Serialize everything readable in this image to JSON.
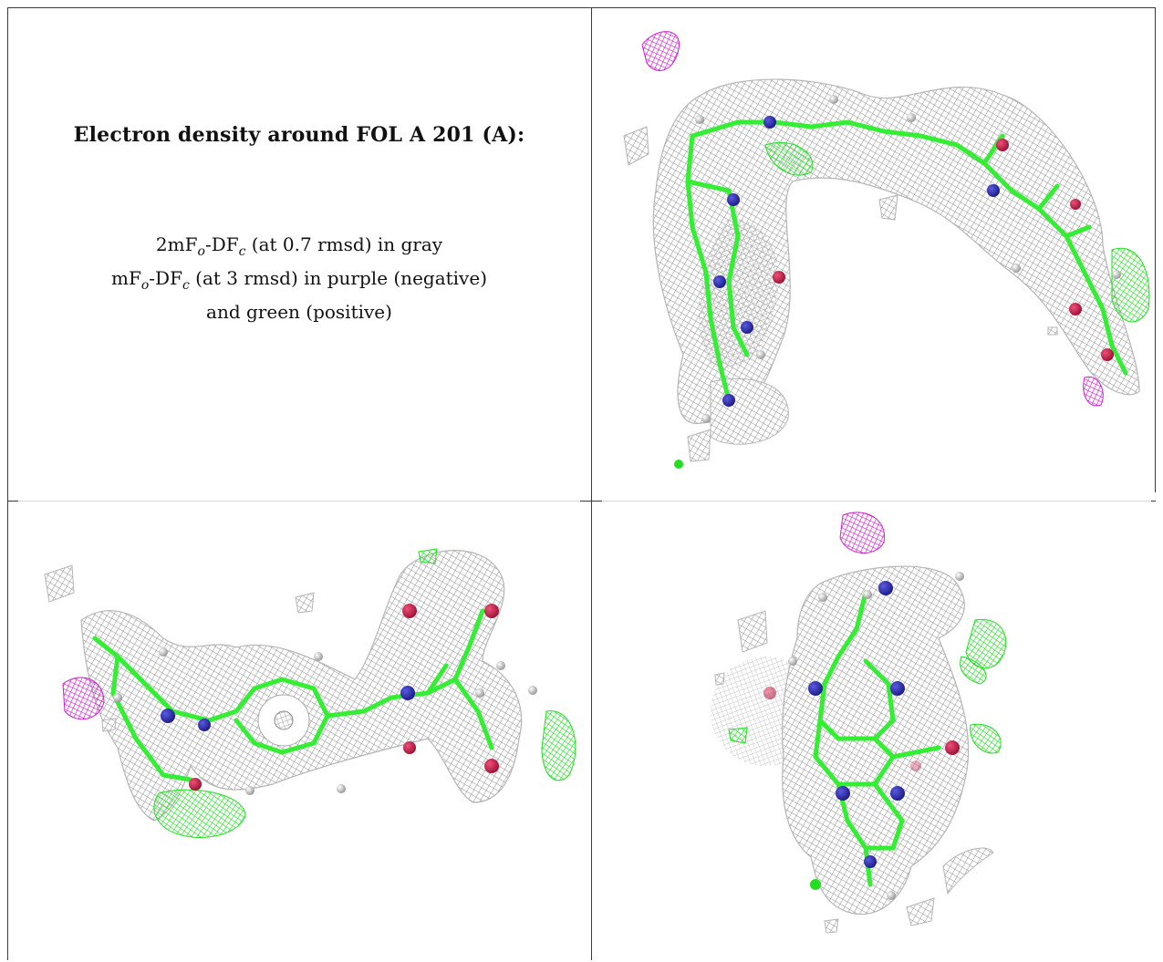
{
  "title": "Electron density around FOL A 201 (A):",
  "legend": {
    "line1": {
      "pre": "2mF",
      "o": "o",
      "mid": "-DF",
      "c": "c",
      "post": " (at 0.7 rmsd) in gray"
    },
    "line2": {
      "pre": "mF",
      "o": "o",
      "mid": "-DF",
      "c": "c",
      "post": " (at 3 rmsd) in purple (negative)"
    },
    "line3": "and green (positive)"
  },
  "colors": {
    "mesh_2fofc": "#9a9a9a",
    "negative_density": "#cc22cc",
    "positive_density": "#22dd22",
    "carbon": "#33ee33",
    "nitrogen": "#2b2bb0",
    "oxygen": "#d0204a",
    "hydrogen": "#e8e8e8"
  },
  "panels": [
    {
      "view": "view-1",
      "icon": "density-view-1"
    },
    {
      "view": "view-2",
      "icon": "density-view-2"
    },
    {
      "view": "view-3",
      "icon": "density-view-3"
    }
  ]
}
